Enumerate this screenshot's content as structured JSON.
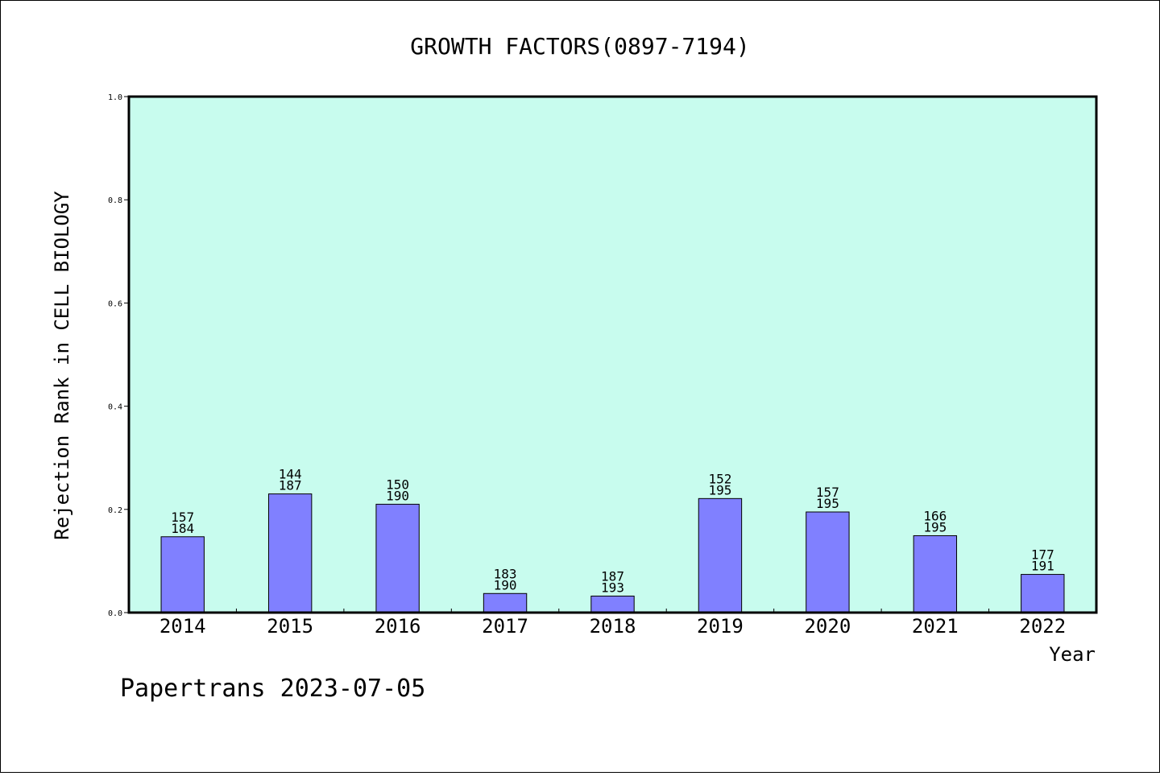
{
  "chart_data": {
    "type": "bar",
    "title": "GROWTH FACTORS(0897-7194)",
    "xlabel": "Year",
    "ylabel": "Rejection Rank in CELL BIOLOGY",
    "ylim": [
      0,
      1.0
    ],
    "yticks": [
      "0.0",
      "0.2",
      "0.4",
      "0.6",
      "0.8",
      "1.0"
    ],
    "grid": false,
    "colors": {
      "plot_bg": "#c8fcee",
      "bar": "#8080ff",
      "bar_edge": "#000000"
    },
    "categories": [
      "2014",
      "2015",
      "2016",
      "2017",
      "2018",
      "2019",
      "2020",
      "2021",
      "2022"
    ],
    "values": [
      0.147,
      0.23,
      0.21,
      0.037,
      0.032,
      0.221,
      0.195,
      0.149,
      0.074
    ],
    "labels_top": [
      "157",
      "144",
      "150",
      "183",
      "187",
      "152",
      "157",
      "166",
      "177"
    ],
    "labels_bottom": [
      "184",
      "187",
      "190",
      "190",
      "193",
      "195",
      "195",
      "195",
      "191"
    ]
  },
  "footer": "Papertrans 2023-07-05"
}
